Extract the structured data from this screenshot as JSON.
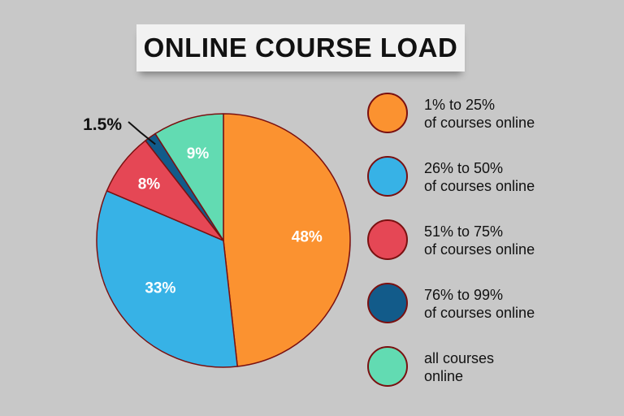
{
  "title": "ONLINE COURSE LOAD",
  "chart_data": {
    "type": "pie",
    "slices": [
      {
        "label": "1% to 25%\nof courses online",
        "value": 48,
        "display": "48%",
        "color": "#fb9230"
      },
      {
        "label": "26% to 50%\nof courses online",
        "value": 33,
        "display": "33%",
        "color": "#37b2e6"
      },
      {
        "label": "51% to 75%\nof courses online",
        "value": 8,
        "display": "8%",
        "color": "#e54755"
      },
      {
        "label": "76% to 99%\nof courses online",
        "value": 1.5,
        "display": "1.5%",
        "color": "#125b8a"
      },
      {
        "label": "all courses\nonline",
        "value": 9,
        "display": "9%",
        "color": "#62dbb2"
      }
    ],
    "legend_position": "right",
    "start": "top, clockwise",
    "outline_color": "#7a1010"
  }
}
